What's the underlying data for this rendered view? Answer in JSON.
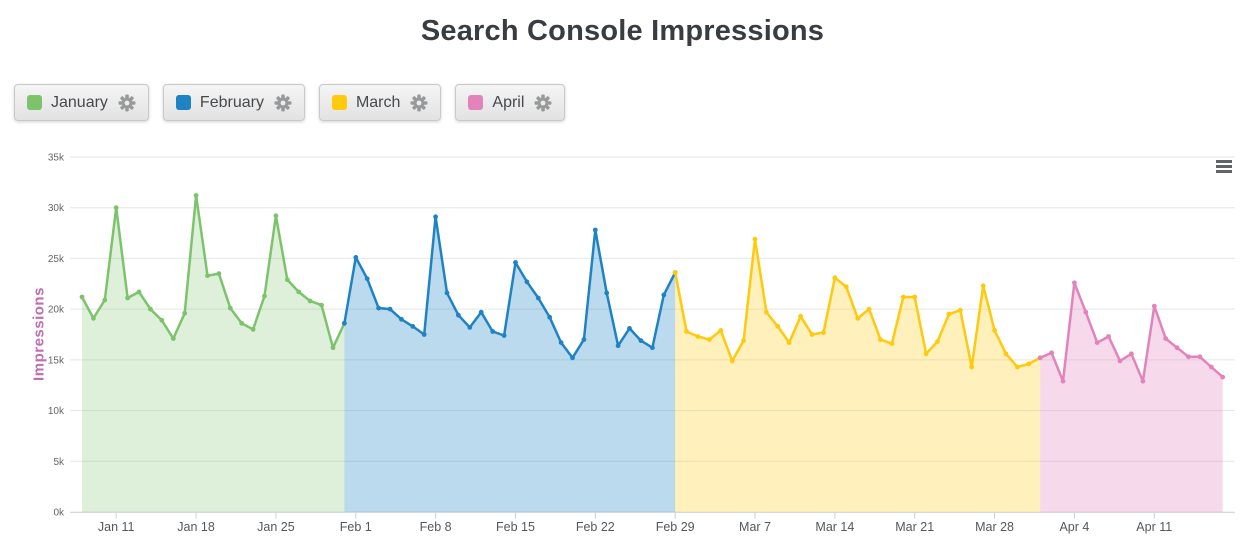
{
  "title": "Search Console Impressions",
  "legend": [
    {
      "label": "January",
      "color": "#7dc36b",
      "icon": "gear-icon"
    },
    {
      "label": "February",
      "color": "#1f83c3",
      "icon": "gear-icon"
    },
    {
      "label": "March",
      "color": "#ffc90e",
      "icon": "gear-icon"
    },
    {
      "label": "April",
      "color": "#e283bc",
      "icon": "gear-icon"
    }
  ],
  "menu": {
    "icon": "hamburger-menu-icon"
  },
  "chart_data": {
    "type": "area",
    "title": "Search Console Impressions",
    "xlabel": "",
    "ylabel": "Impressions",
    "unit": "impressions, values in thousands (k)",
    "ylim": [
      0,
      35000
    ],
    "grid": true,
    "legend_position": "top-left buttons",
    "x_start_date": "Jan 8",
    "ytick_values_k": [
      0,
      5,
      10,
      15,
      20,
      25,
      30,
      35
    ],
    "ytick_labels": [
      "0k",
      "5k",
      "10k",
      "15k",
      "20k",
      "25k",
      "30k",
      "35k"
    ],
    "xticks": [
      {
        "label": "Jan 11",
        "day": 3
      },
      {
        "label": "Jan 18",
        "day": 10
      },
      {
        "label": "Jan 25",
        "day": 17
      },
      {
        "label": "Feb 1",
        "day": 24
      },
      {
        "label": "Feb 8",
        "day": 31
      },
      {
        "label": "Feb 15",
        "day": 38
      },
      {
        "label": "Feb 22",
        "day": 45
      },
      {
        "label": "Feb 29",
        "day": 52
      },
      {
        "label": "Mar 7",
        "day": 59
      },
      {
        "label": "Mar 14",
        "day": 66
      },
      {
        "label": "Mar 21",
        "day": 73
      },
      {
        "label": "Mar 28",
        "day": 80
      },
      {
        "label": "Apr 4",
        "day": 87
      },
      {
        "label": "Apr 11",
        "day": 94
      }
    ],
    "series": [
      {
        "name": "January",
        "color": "#7dc36b",
        "fill_opacity": 0.25,
        "start_day": 0,
        "start_date": "Jan 8",
        "end_date": "Jan 31",
        "values_k": [
          21.2,
          19.1,
          20.9,
          30.0,
          21.1,
          21.7,
          20.0,
          18.9,
          17.1,
          19.6,
          31.2,
          23.3,
          23.5,
          20.1,
          18.6,
          18.0,
          21.3,
          29.2,
          22.9,
          21.7,
          20.8,
          20.4,
          16.2,
          18.6
        ]
      },
      {
        "name": "February",
        "color": "#1f83c3",
        "fill_opacity": 0.3,
        "start_day": 23,
        "start_date": "Jan 31",
        "end_date": "Feb 29",
        "values_k": [
          18.6,
          25.1,
          23.0,
          20.1,
          20.0,
          19.0,
          18.3,
          17.5,
          29.1,
          21.6,
          19.4,
          18.2,
          19.7,
          17.8,
          17.4,
          24.6,
          22.7,
          21.1,
          19.2,
          16.7,
          15.2,
          17.0,
          27.8,
          21.6,
          16.4,
          18.1,
          16.9,
          16.2,
          21.4,
          23.6
        ]
      },
      {
        "name": "March",
        "color": "#ffc90e",
        "fill_opacity": 0.28,
        "start_day": 52,
        "start_date": "Feb 29",
        "end_date": "Apr 1",
        "values_k": [
          23.6,
          17.8,
          17.3,
          17.0,
          17.9,
          14.9,
          16.9,
          26.9,
          19.7,
          18.3,
          16.7,
          19.3,
          17.5,
          17.7,
          23.1,
          22.2,
          19.1,
          20.0,
          17.0,
          16.6,
          21.2,
          21.2,
          15.6,
          16.8,
          19.5,
          19.9,
          14.3,
          22.3,
          17.9,
          15.6,
          14.3,
          14.6,
          15.2
        ]
      },
      {
        "name": "April",
        "color": "#e283bc",
        "fill_opacity": 0.3,
        "start_day": 84,
        "start_date": "Apr 1",
        "end_date": "Apr 17",
        "values_k": [
          15.2,
          15.7,
          12.9,
          22.6,
          19.7,
          16.7,
          17.3,
          14.9,
          15.6,
          12.9,
          20.3,
          17.1,
          16.2,
          15.3,
          15.3,
          14.3,
          13.3
        ]
      }
    ]
  }
}
